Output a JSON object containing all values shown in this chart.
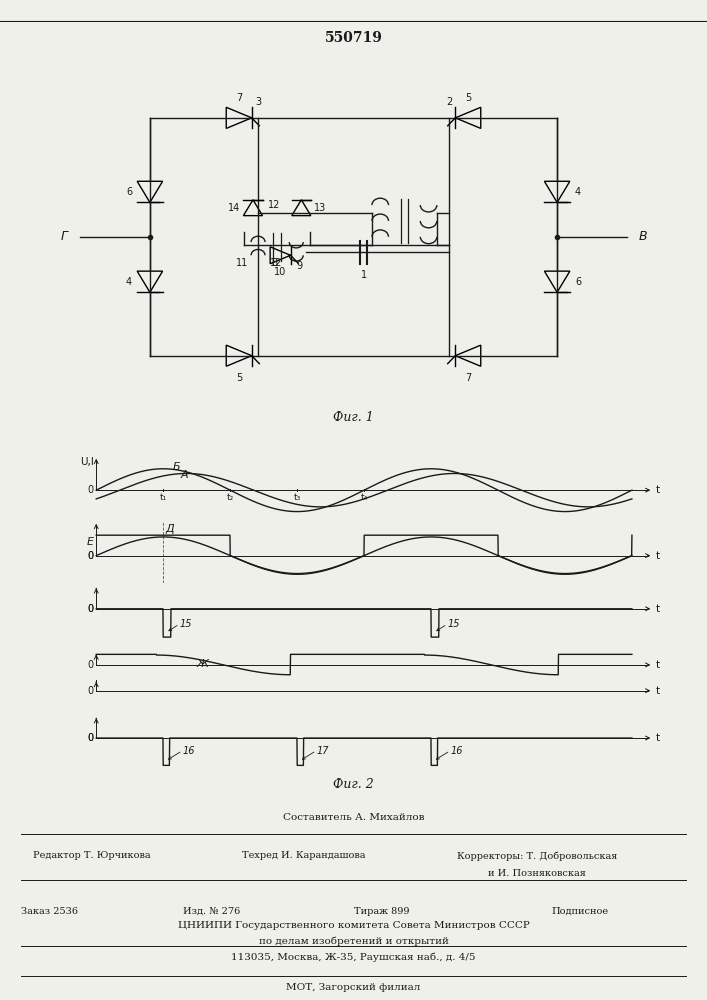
{
  "title": "550719",
  "fig1_caption": "Фиг. 1",
  "fig2_caption": "Фиг. 2",
  "footer_line1": "Составитель А. Михайлов",
  "footer_line2_left": "Редактор Т. Юрчикова",
  "footer_line2_mid": "Техред И. Карандашова",
  "footer_line2_right": "Корректоры: Т. Добровольская",
  "footer_line3": "и И. Позняковская",
  "footer_line4a": "Заказ 2536",
  "footer_line4b": "Изд. № 276",
  "footer_line4c": "Тираж 899",
  "footer_line4d": "Подписное",
  "footer_line5": "ЦНИИПИ Государственного комитета Совета Министров СССР",
  "footer_line6": "по делам изобретений и открытий",
  "footer_line7": "113035, Москва, Ж-35, Раушская наб., д. 4/5",
  "footer_line8": "МОТ, Загорский филиал",
  "bg_color": "#f0f0eb",
  "line_color": "#1a1a1a"
}
